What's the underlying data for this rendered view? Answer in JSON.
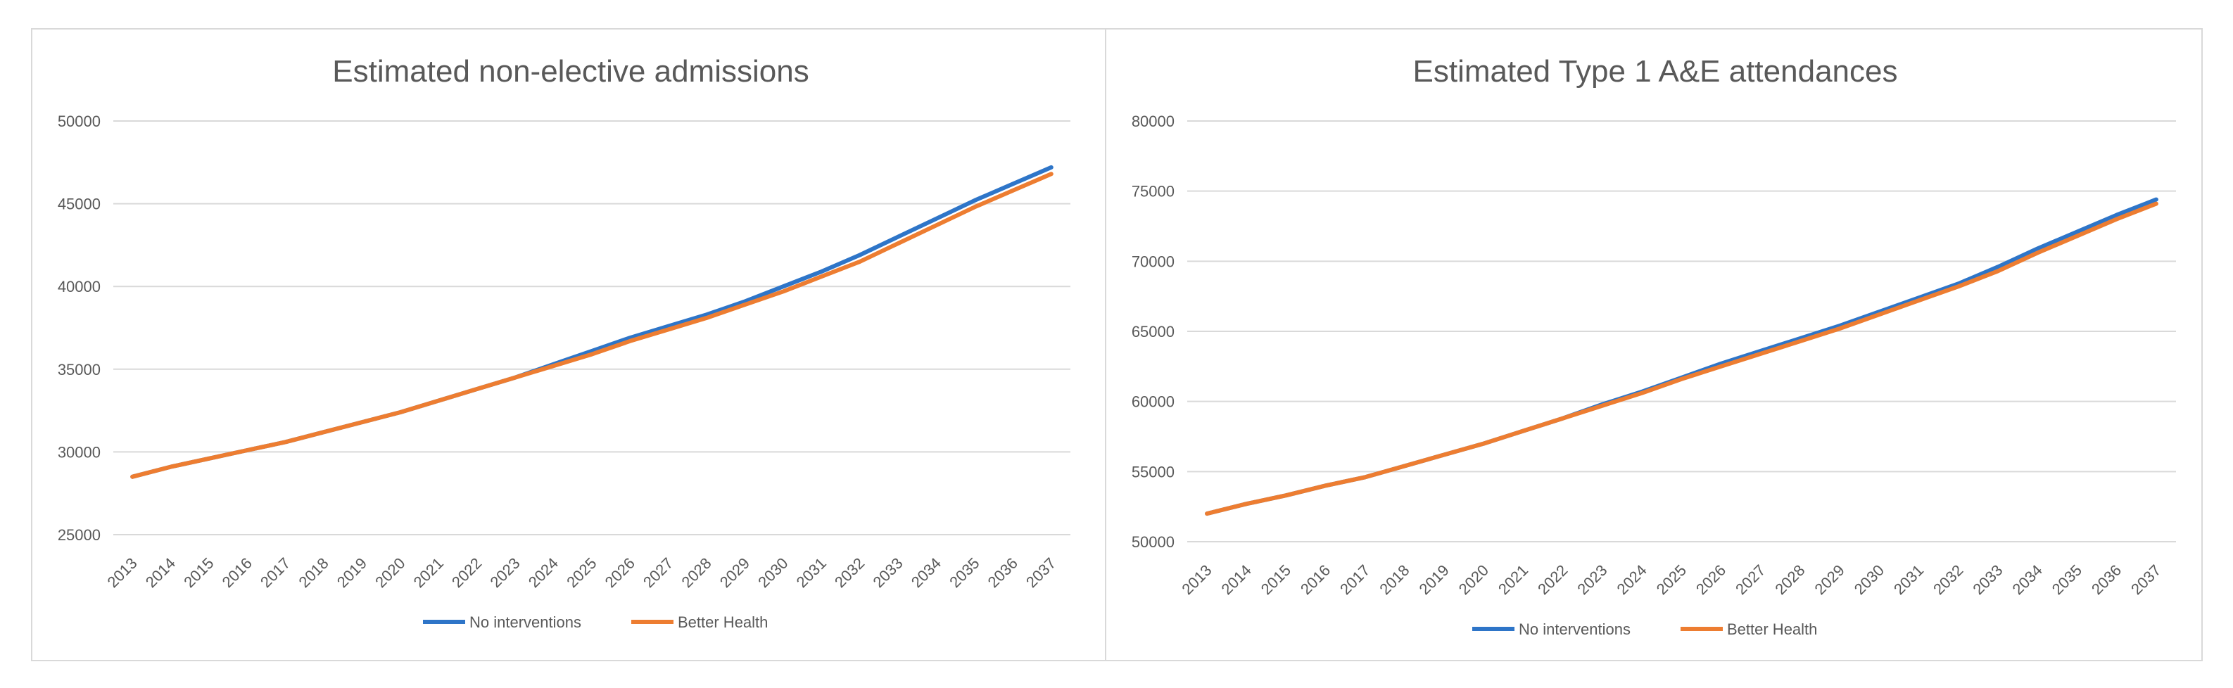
{
  "colors": {
    "no_interventions": "#2E75C8",
    "better_health": "#ED7D31"
  },
  "chart_data": [
    {
      "type": "line",
      "title": "Estimated non-elective admissions",
      "xlabel": "",
      "ylabel": "",
      "ylim": [
        25000,
        50000
      ],
      "yticks": [
        "25000",
        "30000",
        "35000",
        "40000",
        "45000",
        "50000"
      ],
      "categories": [
        "2013",
        "2014",
        "2015",
        "2016",
        "2017",
        "2018",
        "2019",
        "2020",
        "2021",
        "2022",
        "2023",
        "2024",
        "2025",
        "2026",
        "2027",
        "2028",
        "2029",
        "2030",
        "2031",
        "2032",
        "2033",
        "2034",
        "2035",
        "2036",
        "2037"
      ],
      "series": [
        {
          "name": "No interventions",
          "values": [
            28500,
            29100,
            29600,
            30100,
            30600,
            31200,
            31800,
            32400,
            33100,
            33800,
            34500,
            35300,
            36100,
            36900,
            37600,
            38300,
            39100,
            40000,
            40900,
            41900,
            43000,
            44100,
            45200,
            46200,
            47200
          ]
        },
        {
          "name": "Better Health",
          "values": [
            28500,
            29100,
            29600,
            30100,
            30600,
            31200,
            31800,
            32400,
            33100,
            33800,
            34500,
            35200,
            35900,
            36700,
            37400,
            38100,
            38900,
            39700,
            40600,
            41500,
            42600,
            43700,
            44800,
            45800,
            46800
          ]
        }
      ],
      "legend": "bottom"
    },
    {
      "type": "line",
      "title": "Estimated Type 1 A&E attendances",
      "xlabel": "",
      "ylabel": "",
      "ylim": [
        50000,
        80000
      ],
      "yticks": [
        "50000",
        "55000",
        "60000",
        "65000",
        "70000",
        "75000",
        "80000"
      ],
      "categories": [
        "2013",
        "2014",
        "2015",
        "2016",
        "2017",
        "2018",
        "2019",
        "2020",
        "2021",
        "2022",
        "2023",
        "2024",
        "2025",
        "2026",
        "2027",
        "2028",
        "2029",
        "2030",
        "2031",
        "2032",
        "2033",
        "2034",
        "2035",
        "2036",
        "2037"
      ],
      "series": [
        {
          "name": "No interventions",
          "values": [
            52000,
            52700,
            53300,
            54000,
            54600,
            55400,
            56200,
            57000,
            57900,
            58800,
            59800,
            60700,
            61700,
            62700,
            63600,
            64500,
            65400,
            66400,
            67400,
            68400,
            69600,
            70900,
            72100,
            73300,
            74400
          ]
        },
        {
          "name": "Better Health",
          "values": [
            52000,
            52700,
            53300,
            54000,
            54600,
            55400,
            56200,
            57000,
            57900,
            58800,
            59700,
            60600,
            61600,
            62500,
            63400,
            64300,
            65200,
            66200,
            67200,
            68200,
            69300,
            70600,
            71800,
            73000,
            74100
          ]
        }
      ],
      "legend": "bottom"
    }
  ]
}
